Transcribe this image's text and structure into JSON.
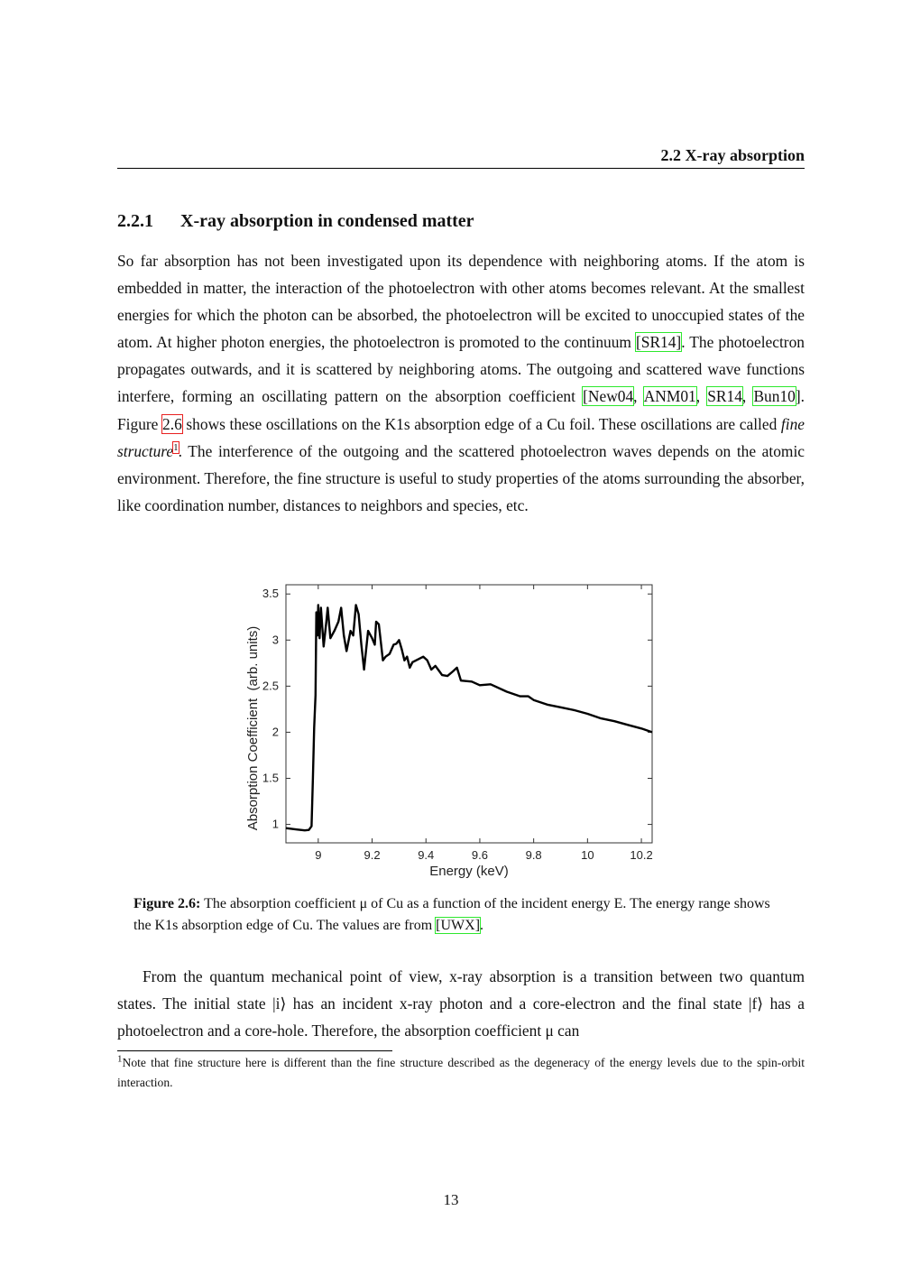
{
  "header": {
    "running_title": "2.2 X-ray absorption"
  },
  "section": {
    "number": "2.2.1",
    "title": "X-ray absorption in condensed matter"
  },
  "paragraph1": [
    {
      "t": "So far absorption has not been investigated upon its dependence with neighboring atoms. If the atom is embedded in matter, the interaction of the photoelectron with other atoms becomes relevant. At the smallest energies for which the photon can be absorbed, the photoelectron will be excited to unoccupied states of the atom. At higher photon energies, the photoelectron is promoted to the continuum "
    },
    {
      "t": "[SR14]",
      "k": "cite"
    },
    {
      "t": ". The photoelectron propagates outwards, and it is scattered by neighboring atoms. The outgoing and scattered wave functions interfere, forming an oscillating pattern on the absorption coefficient "
    },
    {
      "t": "[New04",
      "k": "cite"
    },
    {
      "t": ", "
    },
    {
      "t": "ANM01",
      "k": "cite"
    },
    {
      "t": ", "
    },
    {
      "t": "SR14",
      "k": "cite"
    },
    {
      "t": ", "
    },
    {
      "t": "Bun10",
      "k": "cite"
    },
    {
      "t": "]. Figure "
    },
    {
      "t": "2.6",
      "k": "ref"
    },
    {
      "t": " shows these oscillations on the K1s absorption edge of a Cu foil. These oscillations are called "
    },
    {
      "t": "fine structure",
      "k": "em"
    },
    {
      "t": "1",
      "k": "fnref"
    },
    {
      "t": ". The interference of the outgoing and the scattered photoelectron waves depends on the atomic environment. Therefore, the fine structure is useful to study properties of the atoms surrounding the absorber, like coordination number, distances to neighbors and species, etc."
    }
  ],
  "figure": {
    "label": "Figure 2.6:",
    "caption_text": " The absorption coefficient μ of Cu as a function of the incident energy E. The energy range shows the K1s absorption edge of Cu. The values are from ",
    "caption_cite": "[UWX]",
    "caption_end": "."
  },
  "chart_data": {
    "type": "line",
    "title": "",
    "xlabel": "Energy (keV)",
    "ylabel": "Absorption Coefficient  (arb. units)",
    "xlim": [
      8.88,
      10.24
    ],
    "ylim": [
      0.8,
      3.6
    ],
    "xticks": [
      9,
      9.2,
      9.4,
      9.6,
      9.8,
      10,
      10.2
    ],
    "xtick_labels": [
      "9",
      "9.2",
      "9.4",
      "9.6",
      "9.8",
      "10",
      "10.2"
    ],
    "yticks": [
      1,
      1.5,
      2,
      2.5,
      3,
      3.5
    ],
    "ytick_labels": [
      "1",
      "1.5",
      "2",
      "2.5",
      "3",
      "3.5"
    ],
    "grid": false,
    "line_color": "#000000",
    "series": [
      {
        "x": [
          8.88,
          8.92,
          8.95,
          8.965,
          8.975,
          8.98,
          8.985,
          8.99,
          8.993,
          8.997,
          9.0,
          9.005,
          9.01,
          9.02,
          9.03,
          9.035,
          9.045,
          9.06,
          9.075,
          9.085,
          9.095,
          9.105,
          9.12,
          9.13,
          9.14,
          9.15,
          9.16,
          9.17,
          9.185,
          9.2,
          9.21,
          9.215,
          9.225,
          9.24,
          9.25,
          9.265,
          9.28,
          9.29,
          9.3,
          9.31,
          9.32,
          9.33,
          9.34,
          9.35,
          9.39,
          9.405,
          9.42,
          9.435,
          9.45,
          9.46,
          9.48,
          9.5,
          9.515,
          9.53,
          9.57,
          9.6,
          9.64,
          9.7,
          9.75,
          9.78,
          9.8,
          9.85,
          9.9,
          9.95,
          10.0,
          10.05,
          10.1,
          10.15,
          10.2,
          10.24
        ],
        "y": [
          0.96,
          0.945,
          0.935,
          0.94,
          0.98,
          1.5,
          2.05,
          2.4,
          3.3,
          3.05,
          3.38,
          3.02,
          3.35,
          2.93,
          3.2,
          3.35,
          3.02,
          3.1,
          3.2,
          3.35,
          3.05,
          2.88,
          3.1,
          3.05,
          3.38,
          3.28,
          2.95,
          2.68,
          3.1,
          3.02,
          2.95,
          3.2,
          3.17,
          2.78,
          2.82,
          2.85,
          2.95,
          2.96,
          3.0,
          2.9,
          2.78,
          2.82,
          2.7,
          2.76,
          2.82,
          2.78,
          2.68,
          2.72,
          2.66,
          2.62,
          2.61,
          2.66,
          2.7,
          2.56,
          2.55,
          2.51,
          2.52,
          2.44,
          2.39,
          2.39,
          2.35,
          2.3,
          2.27,
          2.24,
          2.2,
          2.15,
          2.12,
          2.08,
          2.04,
          2.0
        ]
      }
    ]
  },
  "paragraph2": {
    "text": "From the quantum mechanical point of view, x-ray absorption is a transition between two quantum states. The initial state |i⟩ has an incident x-ray photon and a core-electron and the final state |f⟩ has a photoelectron and a core-hole. Therefore, the absorption coefficient μ can"
  },
  "footnote": {
    "mark": "1",
    "text": "Note that fine structure here is different than the fine structure described as the degeneracy of the energy levels due to the spin-orbit interaction."
  },
  "page_number": "13"
}
